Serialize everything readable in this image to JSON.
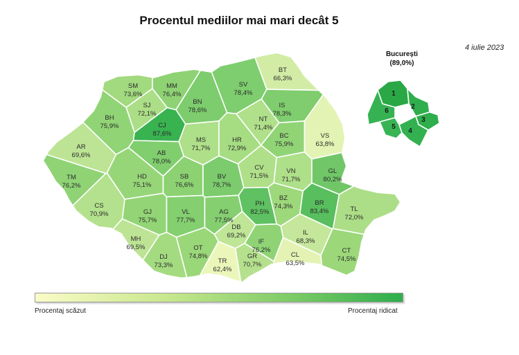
{
  "title": "Procentul mediilor mai mari decât 5",
  "date": "4 iulie 2023",
  "bucuresti": {
    "name": "București",
    "value": "(89,0%)"
  },
  "legend": {
    "low": "Procentaj scăzut",
    "high": "Procentaj ridicat"
  },
  "colors": {
    "low": "#fbfcc7",
    "mid": "#9cd87a",
    "high": "#2eae4c",
    "border": "#ffffff"
  },
  "counties": [
    {
      "code": "SM",
      "value": "73,6%"
    },
    {
      "code": "MM",
      "value": "76,4%"
    },
    {
      "code": "BT",
      "value": "66,3%"
    },
    {
      "code": "SV",
      "value": "78,4%"
    },
    {
      "code": "SJ",
      "value": "72,1%"
    },
    {
      "code": "BN",
      "value": "78,6%"
    },
    {
      "code": "IS",
      "value": "78,3%"
    },
    {
      "code": "BH",
      "value": "75,9%"
    },
    {
      "code": "CJ",
      "value": "87,6%"
    },
    {
      "code": "NT",
      "value": "71,4%"
    },
    {
      "code": "MS",
      "value": "71,7%"
    },
    {
      "code": "HR",
      "value": "72,9%"
    },
    {
      "code": "BC",
      "value": "75,9%"
    },
    {
      "code": "VS",
      "value": "63,8%"
    },
    {
      "code": "AR",
      "value": "69,6%"
    },
    {
      "code": "AB",
      "value": "78,0%"
    },
    {
      "code": "CV",
      "value": "71,5%"
    },
    {
      "code": "VN",
      "value": "71,7%"
    },
    {
      "code": "GL",
      "value": "80,2%"
    },
    {
      "code": "TM",
      "value": "76,2%"
    },
    {
      "code": "HD",
      "value": "75,1%"
    },
    {
      "code": "SB",
      "value": "76,6%"
    },
    {
      "code": "BV",
      "value": "78,7%"
    },
    {
      "code": "BZ",
      "value": "74,3%"
    },
    {
      "code": "CS",
      "value": "70,9%"
    },
    {
      "code": "PH",
      "value": "82,5%"
    },
    {
      "code": "BR",
      "value": "83,4%"
    },
    {
      "code": "TL",
      "value": "72,0%"
    },
    {
      "code": "GJ",
      "value": "75,7%"
    },
    {
      "code": "VL",
      "value": "77,7%"
    },
    {
      "code": "AG",
      "value": "77,5%"
    },
    {
      "code": "DB",
      "value": "69,2%"
    },
    {
      "code": "IL",
      "value": "68,3%"
    },
    {
      "code": "MH",
      "value": "69,5%"
    },
    {
      "code": "IF",
      "value": "76,2%"
    },
    {
      "code": "DJ",
      "value": "73,3%"
    },
    {
      "code": "OT",
      "value": "74,8%"
    },
    {
      "code": "CL",
      "value": "63,5%"
    },
    {
      "code": "CT",
      "value": "74,5%"
    },
    {
      "code": "TR",
      "value": "62,4%"
    },
    {
      "code": "GR",
      "value": "70,7%"
    }
  ],
  "sectors": [
    "1",
    "2",
    "3",
    "4",
    "5",
    "6"
  ]
}
